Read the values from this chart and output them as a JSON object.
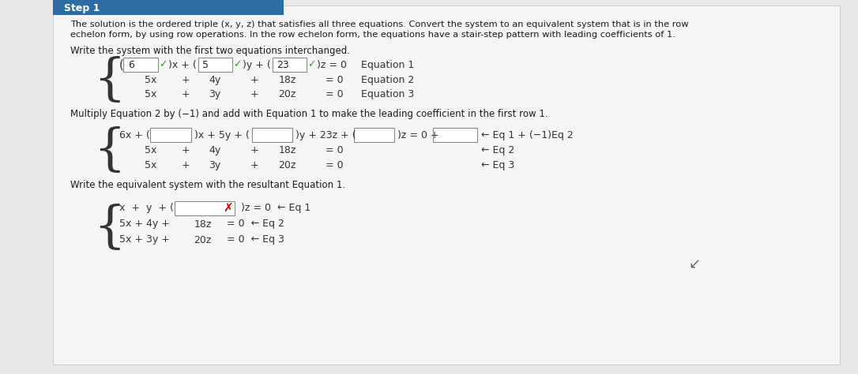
{
  "bg_color": "#e8e8e8",
  "panel_color": "#f5f5f5",
  "header_color": "#2e6da4",
  "header_text": "Step 1",
  "header_text_color": "#ffffff",
  "body_text_color": "#1a1a1a",
  "intro_line1": "The solution is the ordered triple (x, y, z) that satisfies all three equations. Convert the system to an equivalent system that is in the row",
  "intro_line2": "echelon form, by using row operations. In the row echelon form, the equations have a stair-step pattern with leading coefficients of 1.",
  "section1_title": "Write the system with the first two equations interchanged.",
  "section2_title": "Multiply Equation 2 by (−1) and add with Equation 1 to make the leading coefficient in the first row 1.",
  "section3_title": "Write the equivalent system with the resultant Equation 1.",
  "check_color": "#4a8f3f",
  "x_color": "#cc0000",
  "eq1_box1": "6",
  "eq1_box2": "5",
  "eq1_box3": "23"
}
